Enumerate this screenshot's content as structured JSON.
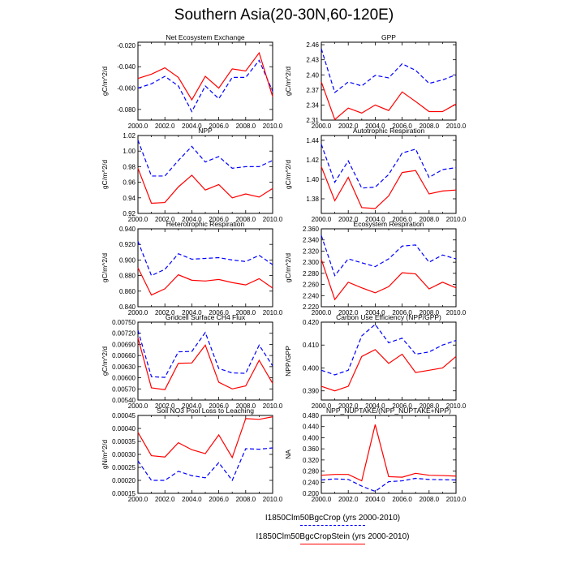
{
  "title": "Southern Asia(20-30N,60-120E)",
  "legend": {
    "crop_label": "I1850Clm50BgcCrop (yrs 2000-2010)",
    "stein_label": "I1850Clm50BgcCropStein (yrs 2000-2010)",
    "crop_color": "#0000ff",
    "stein_color": "#ff0000"
  },
  "chart_data": [
    {
      "type": "line",
      "title": "Net Ecosystem Exchange",
      "ylabel": "gC/m^2/d",
      "x": [
        2000,
        2001,
        2002,
        2003,
        2004,
        2005,
        2006,
        2007,
        2008,
        2009,
        2010
      ],
      "xlim": [
        2000,
        2010
      ],
      "xticks": [
        "2000.0",
        "2002.0",
        "2004.0",
        "2006.0",
        "2008.0",
        "2010.0"
      ],
      "ylim": [
        -0.09,
        -0.017
      ],
      "yticks": [
        "-0.080",
        "-0.060",
        "-0.040",
        "-0.020"
      ],
      "series": [
        {
          "name": "I1850Clm50BgcCrop",
          "values": [
            -0.06,
            -0.056,
            -0.049,
            -0.058,
            -0.082,
            -0.058,
            -0.07,
            -0.05,
            -0.05,
            -0.034,
            -0.063
          ]
        },
        {
          "name": "I1850Clm50BgcCropStein",
          "values": [
            -0.051,
            -0.047,
            -0.041,
            -0.05,
            -0.071,
            -0.049,
            -0.06,
            -0.042,
            -0.044,
            -0.027,
            -0.068
          ]
        }
      ]
    },
    {
      "type": "line",
      "title": "GPP",
      "ylabel": "gC/m^2/d",
      "x": [
        2000,
        2001,
        2002,
        2003,
        2004,
        2005,
        2006,
        2007,
        2008,
        2009,
        2010
      ],
      "xlim": [
        2000,
        2010
      ],
      "xticks": [
        "2000.0",
        "2002.0",
        "2004.0",
        "2006.0",
        "2008.0",
        "2010.0"
      ],
      "ylim": [
        2.31,
        2.465
      ],
      "yticks": [
        "2.31",
        "2.34",
        "2.37",
        "2.40",
        "2.43",
        "2.46"
      ],
      "series": [
        {
          "name": "I1850Clm50BgcCrop",
          "values": [
            2.452,
            2.365,
            2.386,
            2.378,
            2.399,
            2.394,
            2.422,
            2.409,
            2.383,
            2.39,
            2.4
          ]
        },
        {
          "name": "I1850Clm50BgcCropStein",
          "values": [
            2.386,
            2.311,
            2.334,
            2.324,
            2.34,
            2.329,
            2.366,
            2.347,
            2.327,
            2.327,
            2.342
          ]
        }
      ]
    },
    {
      "type": "line",
      "title": "NPP",
      "ylabel": "gC/m^2/d",
      "x": [
        2000,
        2001,
        2002,
        2003,
        2004,
        2005,
        2006,
        2007,
        2008,
        2009,
        2010
      ],
      "xlim": [
        2000,
        2010
      ],
      "xticks": [
        "2000.0",
        "2002.0",
        "2004.0",
        "2006.0",
        "2008.0",
        "2010.0"
      ],
      "ylim": [
        0.92,
        1.02
      ],
      "yticks": [
        "0.92",
        "0.94",
        "0.96",
        "0.98",
        "1.00",
        "1.02"
      ],
      "series": [
        {
          "name": "I1850Clm50BgcCrop",
          "values": [
            1.014,
            0.968,
            0.968,
            0.988,
            1.006,
            0.986,
            0.993,
            0.978,
            0.98,
            0.98,
            0.988
          ]
        },
        {
          "name": "I1850Clm50BgcCropStein",
          "values": [
            0.978,
            0.933,
            0.934,
            0.954,
            0.969,
            0.95,
            0.957,
            0.94,
            0.945,
            0.941,
            0.952
          ]
        }
      ]
    },
    {
      "type": "line",
      "title": "Autotrophic Respiration",
      "ylabel": "gC/m^2/d",
      "x": [
        2000,
        2001,
        2002,
        2003,
        2004,
        2005,
        2006,
        2007,
        2008,
        2009,
        2010
      ],
      "xlim": [
        2000,
        2010
      ],
      "xticks": [
        "2000.0",
        "2002.0",
        "2004.0",
        "2006.0",
        "2008.0",
        "2010.0"
      ],
      "ylim": [
        1.365,
        1.445
      ],
      "yticks": [
        "1.38",
        "1.40",
        "1.42",
        "1.44"
      ],
      "series": [
        {
          "name": "I1850Clm50BgcCrop",
          "values": [
            1.436,
            1.397,
            1.419,
            1.391,
            1.392,
            1.405,
            1.427,
            1.431,
            1.402,
            1.41,
            1.412
          ]
        },
        {
          "name": "I1850Clm50BgcCropStein",
          "values": [
            1.413,
            1.378,
            1.402,
            1.371,
            1.37,
            1.383,
            1.407,
            1.409,
            1.385,
            1.388,
            1.389
          ]
        }
      ]
    },
    {
      "type": "line",
      "title": "Heterotrophic Respiration",
      "ylabel": "gC/m^2/d",
      "x": [
        2000,
        2001,
        2002,
        2003,
        2004,
        2005,
        2006,
        2007,
        2008,
        2009,
        2010
      ],
      "xlim": [
        2000,
        2010
      ],
      "xticks": [
        "2000.0",
        "2002.0",
        "2004.0",
        "2006.0",
        "2008.0",
        "2010.0"
      ],
      "ylim": [
        0.84,
        0.94
      ],
      "yticks": [
        "0.840",
        "0.860",
        "0.880",
        "0.900",
        "0.920",
        "0.940"
      ],
      "series": [
        {
          "name": "I1850Clm50BgcCrop",
          "values": [
            0.924,
            0.88,
            0.888,
            0.908,
            0.901,
            0.902,
            0.903,
            0.9,
            0.898,
            0.906,
            0.894
          ]
        },
        {
          "name": "I1850Clm50BgcCropStein",
          "values": [
            0.89,
            0.855,
            0.863,
            0.881,
            0.874,
            0.873,
            0.875,
            0.871,
            0.868,
            0.876,
            0.864
          ]
        }
      ]
    },
    {
      "type": "line",
      "title": "Ecosystem Respiration",
      "ylabel": "gC/m^2/d",
      "x": [
        2000,
        2001,
        2002,
        2003,
        2004,
        2005,
        2006,
        2007,
        2008,
        2009,
        2010
      ],
      "xlim": [
        2000,
        2010
      ],
      "xticks": [
        "2000.0",
        "2002.0",
        "2004.0",
        "2006.0",
        "2008.0",
        "2010.0"
      ],
      "ylim": [
        2.22,
        2.36
      ],
      "yticks": [
        "2.220",
        "2.240",
        "2.260",
        "2.280",
        "2.300",
        "2.320",
        "2.340",
        "2.360"
      ],
      "series": [
        {
          "name": "I1850Clm50BgcCrop",
          "values": [
            2.348,
            2.276,
            2.306,
            2.299,
            2.292,
            2.306,
            2.329,
            2.331,
            2.3,
            2.313,
            2.306
          ]
        },
        {
          "name": "I1850Clm50BgcCropStein",
          "values": [
            2.305,
            2.233,
            2.264,
            2.254,
            2.245,
            2.256,
            2.281,
            2.279,
            2.252,
            2.264,
            2.254
          ]
        }
      ]
    },
    {
      "type": "line",
      "title": "Gridcell Surface CH4 Flux",
      "ylabel": "gC/m^2/d",
      "x": [
        2000,
        2001,
        2002,
        2003,
        2004,
        2005,
        2006,
        2007,
        2008,
        2009,
        2010
      ],
      "xlim": [
        2000,
        2010
      ],
      "xticks": [
        "2000.0",
        "2002.0",
        "2004.0",
        "2006.0",
        "2008.0",
        "2010.0"
      ],
      "ylim": [
        0.0054,
        0.0075
      ],
      "yticks": [
        "0.00540",
        "0.00570",
        "0.00600",
        "0.00630",
        "0.00660",
        "0.00690",
        "0.00720",
        "0.00750"
      ],
      "series": [
        {
          "name": "I1850Clm50BgcCrop",
          "values": [
            0.00728,
            0.00603,
            0.00601,
            0.0067,
            0.00671,
            0.00722,
            0.00625,
            0.00613,
            0.00612,
            0.00688,
            0.00632
          ]
        },
        {
          "name": "I1850Clm50BgcCropStein",
          "values": [
            0.00708,
            0.00573,
            0.00568,
            0.00639,
            0.0064,
            0.00688,
            0.00588,
            0.0057,
            0.00578,
            0.00647,
            0.00585
          ]
        }
      ]
    },
    {
      "type": "line",
      "title": "Carbon Use Efficiency (NPP/GPP)",
      "ylabel": "NPP/GPP",
      "x": [
        2000,
        2001,
        2002,
        2003,
        2004,
        2005,
        2006,
        2007,
        2008,
        2009,
        2010
      ],
      "xlim": [
        2000,
        2010
      ],
      "xticks": [
        "2000.0",
        "2002.0",
        "2004.0",
        "2006.0",
        "2008.0",
        "2010.0"
      ],
      "ylim": [
        0.386,
        0.42
      ],
      "yticks": [
        "0.390",
        "0.400",
        "0.410",
        "0.420"
      ],
      "series": [
        {
          "name": "I1850Clm50BgcCrop",
          "values": [
            0.399,
            0.397,
            0.399,
            0.414,
            0.419,
            0.411,
            0.413,
            0.406,
            0.407,
            0.41,
            0.412
          ]
        },
        {
          "name": "I1850Clm50BgcCropStein",
          "values": [
            0.392,
            0.39,
            0.392,
            0.405,
            0.408,
            0.402,
            0.406,
            0.398,
            0.399,
            0.4,
            0.405
          ]
        }
      ]
    },
    {
      "type": "line",
      "title": "Soil NO3 Pool Loss to Leaching",
      "ylabel": "gN/m^2/d",
      "x": [
        2000,
        2001,
        2002,
        2003,
        2004,
        2005,
        2006,
        2007,
        2008,
        2009,
        2010
      ],
      "xlim": [
        2000,
        2010
      ],
      "xticks": [
        "2000.0",
        "2002.0",
        "2004.0",
        "2006.0",
        "2008.0",
        "2010.0"
      ],
      "ylim": [
        0.00015,
        0.00045
      ],
      "yticks": [
        "0.00015",
        "0.00020",
        "0.00025",
        "0.00030",
        "0.00035",
        "0.00040",
        "0.00045"
      ],
      "series": [
        {
          "name": "I1850Clm50BgcCrop",
          "values": [
            0.000275,
            0.0002,
            0.0002,
            0.000235,
            0.000218,
            0.00021,
            0.000268,
            0.0002,
            0.000322,
            0.00032,
            0.000325
          ]
        },
        {
          "name": "I1850Clm50BgcCropStein",
          "values": [
            0.000385,
            0.000295,
            0.00029,
            0.000345,
            0.000318,
            0.000303,
            0.000375,
            0.000288,
            0.000438,
            0.000435,
            0.000445
          ]
        }
      ]
    },
    {
      "type": "line",
      "title": "NPP_NUPTAKE/(NPP_NUPTAKE+NPP)",
      "ylabel": "NA",
      "x": [
        2000,
        2001,
        2002,
        2003,
        2004,
        2005,
        2006,
        2007,
        2008,
        2009,
        2010
      ],
      "xlim": [
        2000,
        2010
      ],
      "xticks": [
        "2000.0",
        "2002.0",
        "2004.0",
        "2006.0",
        "2008.0",
        "2010.0"
      ],
      "ylim": [
        0.2,
        0.48
      ],
      "yticks": [
        "0.200",
        "0.240",
        "0.280",
        "0.320",
        "0.360",
        "0.400",
        "0.440",
        "0.480"
      ],
      "series": [
        {
          "name": "I1850Clm50BgcCrop",
          "values": [
            0.248,
            0.252,
            0.25,
            0.226,
            0.207,
            0.242,
            0.245,
            0.254,
            0.25,
            0.249,
            0.248
          ]
        },
        {
          "name": "I1850Clm50BgcCropStein",
          "values": [
            0.265,
            0.268,
            0.268,
            0.245,
            0.447,
            0.26,
            0.258,
            0.272,
            0.265,
            0.264,
            0.262
          ]
        }
      ]
    }
  ]
}
